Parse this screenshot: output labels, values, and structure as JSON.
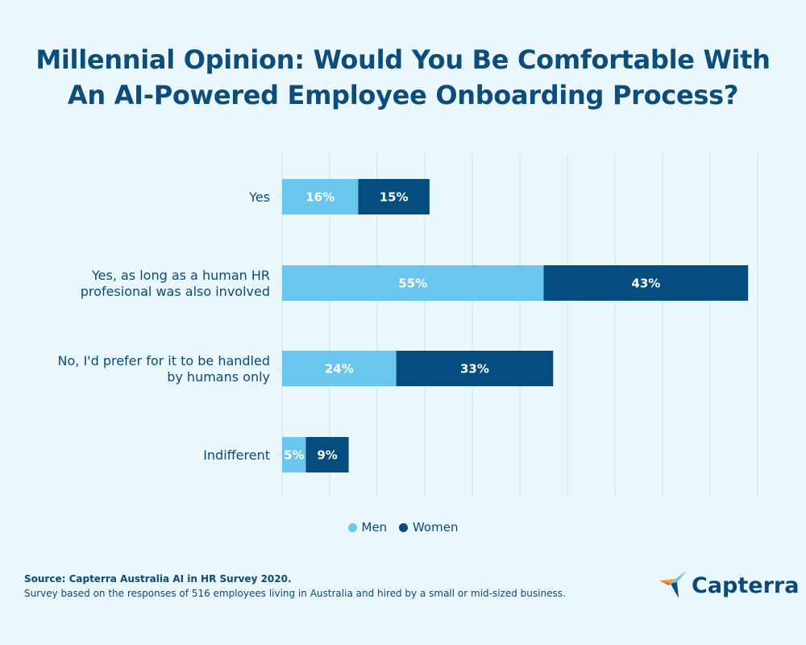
{
  "title_line1": "Millennial Opinion: Would You Be Comfortable With",
  "title_line2": "An AI-Powered Employee Onboarding Process?",
  "chart_data": {
    "type": "bar",
    "orientation": "horizontal",
    "stacked": true,
    "categories": [
      [
        "Yes"
      ],
      [
        "Yes, as long as a human HR",
        "profesional was also involved"
      ],
      [
        "No, I'd prefer for it to be handled",
        "by humans only"
      ],
      [
        "Indifferent"
      ]
    ],
    "series": [
      {
        "name": "Men",
        "color": "#6ac6ef",
        "values": [
          16,
          55,
          24,
          5
        ]
      },
      {
        "name": "Women",
        "color": "#054d7e",
        "values": [
          15,
          43,
          33,
          9
        ]
      }
    ],
    "xlim": [
      0,
      100
    ],
    "grid": true,
    "legend": "bottom",
    "value_suffix": "%"
  },
  "source": "Source: Capterra Australia AI in HR Survey 2020.",
  "note": "Survey based on the responses of 516 employees living in Australia and hired by a small or mid-sized business.",
  "logo_text": "Capterra"
}
